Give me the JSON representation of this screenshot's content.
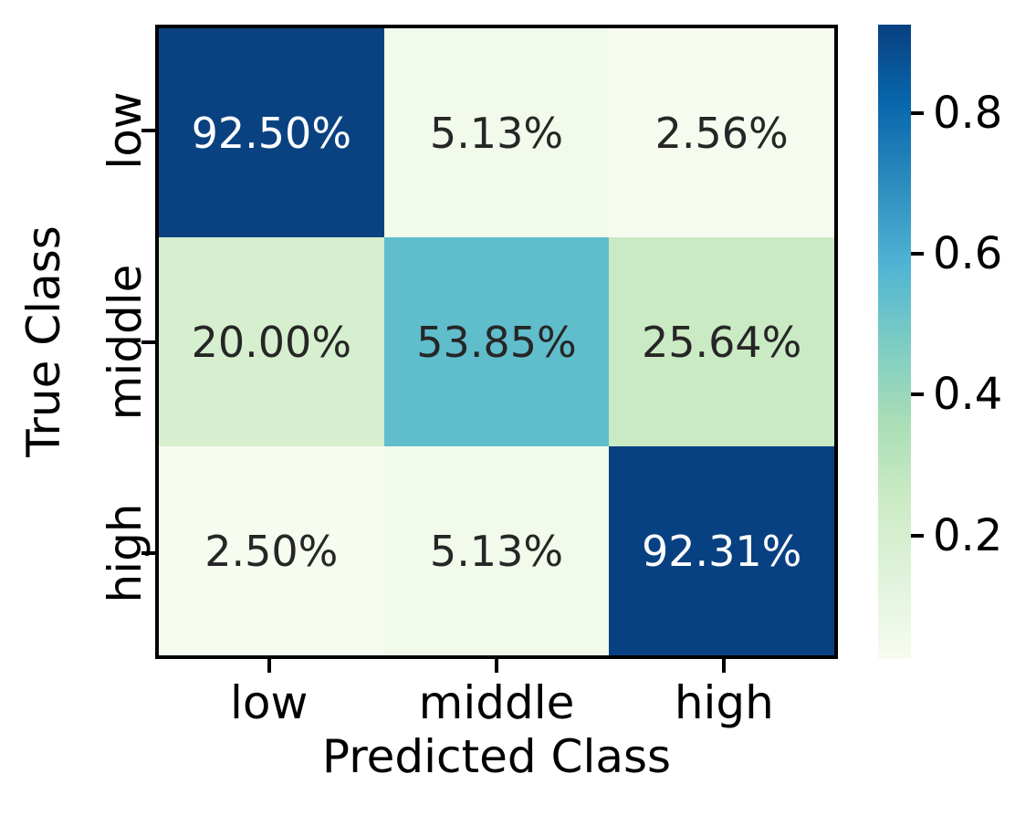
{
  "figure": {
    "background": "#ffffff",
    "axis_color": "#000000"
  },
  "chart_data": {
    "type": "heatmap",
    "title": "",
    "xlabel": "Predicted Class",
    "ylabel": "True Class",
    "x_categories": [
      "low",
      "middle",
      "high"
    ],
    "y_categories": [
      "low",
      "middle",
      "high"
    ],
    "values_percent": [
      [
        92.5,
        5.13,
        2.56
      ],
      [
        20.0,
        53.85,
        25.64
      ],
      [
        2.5,
        5.13,
        92.31
      ]
    ],
    "cell_labels": [
      [
        "92.50%",
        "5.13%",
        "2.56%"
      ],
      [
        "20.00%",
        "53.85%",
        "25.64%"
      ],
      [
        "2.50%",
        "5.13%",
        "92.31%"
      ]
    ],
    "cell_colors": [
      [
        "#0a4281",
        "#f2faeb",
        "#f6fbef"
      ],
      [
        "#d5efcf",
        "#60bdcc",
        "#caeac4"
      ],
      [
        "#f7fcf0",
        "#f2faeb",
        "#084182"
      ]
    ],
    "cell_text_colors": [
      [
        "#ffffff",
        "#262626",
        "#262626"
      ],
      [
        "#262626",
        "#262626",
        "#262626"
      ],
      [
        "#262626",
        "#262626",
        "#ffffff"
      ]
    ],
    "grid": false,
    "legend_position": "colorbar-right",
    "colormap": {
      "name": "GnBu",
      "stops": [
        "#f7fcf0",
        "#e0f3db",
        "#ccebc5",
        "#a8ddb5",
        "#7bccc4",
        "#4eb3d3",
        "#2b8cbe",
        "#0868ac",
        "#084081"
      ]
    },
    "colorbar": {
      "vmin": 0.025,
      "vmax": 0.925,
      "tick_values": [
        0.8,
        0.6,
        0.4,
        0.2
      ],
      "tick_labels": [
        "0.8",
        "0.6",
        "0.4",
        "0.2"
      ]
    }
  }
}
